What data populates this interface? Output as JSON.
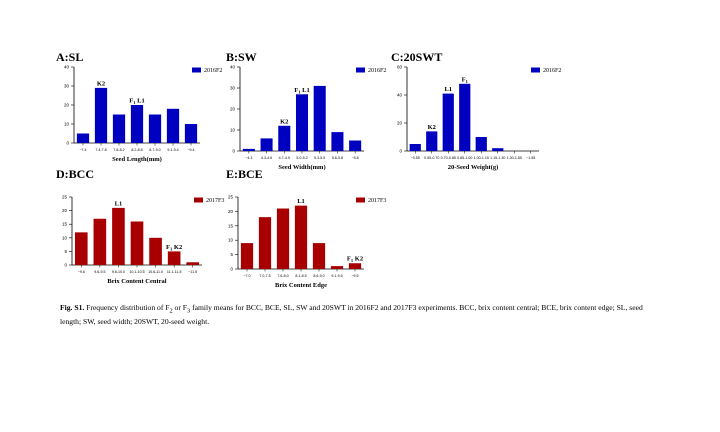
{
  "colors": {
    "blue": "#0000c0",
    "red": "#a80000",
    "axis": "#000000"
  },
  "caption": {
    "label": "Fig. S1.",
    "text_1": " Frequency distribution of F",
    "sub_1": "2",
    "text_2": " or F",
    "sub_2": "3",
    "text_3": " family means for BCC, BCE, SL, SW and 20SWT in 2016F2 and 2017F3 experiments. BCC, brix content central; BCE, brix content edge; SL, seed length; SW, seed width; 20SWT, 20-seed weight."
  },
  "chart_data": [
    {
      "id": "A",
      "type": "bar",
      "title": "A:SL",
      "xlabel": "Seed Length(mm)",
      "ylabel": "",
      "legend": "2016F2",
      "color": "blue",
      "ylim": [
        0,
        40
      ],
      "yticks": [
        0,
        10,
        20,
        30,
        40
      ],
      "categories": [
        "~7.4",
        "7.4-7.8",
        "7.8-8.2",
        "8.2-8.6",
        "8.7-9.0",
        "9.1-9.4",
        "~9.4"
      ],
      "values": [
        5,
        29,
        15,
        20,
        15,
        18,
        10
      ],
      "annotations": [
        {
          "index": 1,
          "text": "K2"
        },
        {
          "index": 3,
          "text": "F",
          "sub": "1",
          "text2": " L1"
        }
      ]
    },
    {
      "id": "B",
      "type": "bar",
      "title": "B:SW",
      "xlabel": "Seed Width(mm)",
      "ylabel": "",
      "legend": "2016F2",
      "color": "blue",
      "ylim": [
        0,
        40
      ],
      "yticks": [
        0,
        10,
        20,
        30,
        40
      ],
      "categories": [
        "~4.3",
        "4.3-4.6",
        "4.7-4.9",
        "5.0-5.2",
        "5.3-5.5",
        "5.6-5.8",
        "~5.8"
      ],
      "values": [
        1,
        6,
        12,
        27,
        31,
        9,
        5
      ],
      "annotations": [
        {
          "index": 2,
          "text": "K2"
        },
        {
          "index": 3,
          "text": "F",
          "sub": "1",
          "text2": " L1"
        }
      ]
    },
    {
      "id": "C",
      "type": "bar",
      "title": "C:20SWT",
      "xlabel": "20-Seed Weight(g)",
      "ylabel": "",
      "legend": "2016F2",
      "color": "blue",
      "ylim": [
        0,
        60
      ],
      "yticks": [
        0,
        20,
        40,
        60
      ],
      "categories": [
        "~0.55",
        "0.55-0.70",
        "0.70-0.85",
        "0.85-1.00",
        "1.00-1.15",
        "1.15-1.30",
        "1.30-1.55",
        "~1.55"
      ],
      "values": [
        5,
        14,
        41,
        48,
        10,
        2,
        0,
        0
      ],
      "annotations": [
        {
          "index": 1,
          "text": "K2"
        },
        {
          "index": 2,
          "text": "L1"
        },
        {
          "index": 3,
          "text": "F",
          "sub": "1",
          "text2": ""
        }
      ]
    },
    {
      "id": "D",
      "type": "bar",
      "title": "D:BCC",
      "xlabel": "Brix Content Central",
      "ylabel": "",
      "legend": "2017F3",
      "color": "red",
      "ylim": [
        0,
        25
      ],
      "yticks": [
        0,
        5,
        10,
        15,
        20,
        25
      ],
      "categories": [
        "~9.6",
        "9.6-9.5",
        "9.6-10.0",
        "10.1-10.5",
        "10.6-11.0",
        "11.1-11.5",
        "~11.5"
      ],
      "values": [
        12,
        17,
        21,
        16,
        10,
        5,
        1
      ],
      "annotations": [
        {
          "index": 2,
          "text": "L1"
        },
        {
          "index": 5,
          "text": "F",
          "sub": "1",
          "text2": " K2"
        }
      ]
    },
    {
      "id": "E",
      "type": "bar",
      "title": "E:BCE",
      "xlabel": "Brix Content Edge",
      "ylabel": "",
      "legend": "2017F3",
      "color": "red",
      "ylim": [
        0,
        25
      ],
      "yticks": [
        0,
        5,
        10,
        15,
        20,
        25
      ],
      "categories": [
        "~7.0",
        "7.0-7.5",
        "7.6-8.0",
        "8.1-8.5",
        "8.6-9.0",
        "9.1-9.5",
        "~9.5"
      ],
      "values": [
        9,
        18,
        21,
        22,
        9,
        1,
        2
      ],
      "annotations": [
        {
          "index": 3,
          "text": "L1"
        },
        {
          "index": 6,
          "text": "F",
          "sub": "1",
          "text2": " K2"
        }
      ]
    }
  ]
}
